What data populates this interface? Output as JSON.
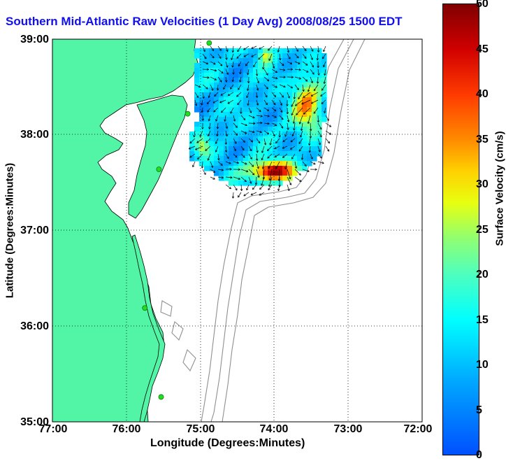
{
  "title": "Southern Mid-Atlantic Raw Velocities (1 Day Avg) 2008/08/25 1500 EDT",
  "axes": {
    "xlabel": "Longitude (Degrees:Minutes)",
    "ylabel": "Latitude (Degrees:Minutes)",
    "x_ticks": [
      "77:00",
      "76:00",
      "75:00",
      "74:00",
      "73:00",
      "72:00"
    ],
    "y_ticks": [
      "39:00",
      "38:00",
      "37:00",
      "36:00",
      "35:00"
    ],
    "lon_range": [
      -77,
      -72
    ],
    "lat_range": [
      35,
      39
    ],
    "grid": "dotted"
  },
  "colorbar": {
    "label": "Surface Velocity (cm/s)",
    "range": [
      0,
      50
    ],
    "ticks": [
      "50",
      "45",
      "40",
      "35",
      "30",
      "25",
      "20",
      "15",
      "10",
      "5",
      "0"
    ]
  },
  "colors": {
    "land": "#52f5a5",
    "coastline": "#000000",
    "bathymetry": "#909090",
    "title": "#1010ee",
    "station": "#22dd22"
  },
  "stations": [
    {
      "lon": -74.88,
      "lat": 38.96
    },
    {
      "lon": -75.17,
      "lat": 38.22
    },
    {
      "lon": -75.56,
      "lat": 37.64
    },
    {
      "lon": -75.75,
      "lat": 36.19
    },
    {
      "lon": -75.53,
      "lat": 35.26
    }
  ]
}
